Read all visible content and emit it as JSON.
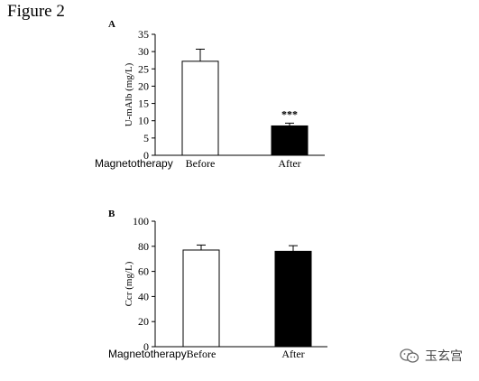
{
  "figure_title": "Figure 2",
  "watermark": {
    "text": "玉玄宫",
    "icon": "wechat-icon"
  },
  "chart_data": [
    {
      "panel": "A",
      "type": "bar",
      "row_label": "Magnetotherapy",
      "categories": [
        "Before",
        "After"
      ],
      "values": [
        27.2,
        8.5
      ],
      "errors": [
        3.5,
        0.8
      ],
      "annotations": [
        "",
        "***"
      ],
      "fills": [
        "#ffffff",
        "#000000"
      ],
      "ylabel": "U-mAlb  (mg/L)",
      "ylim": [
        0,
        35
      ],
      "yticks": [
        0,
        5,
        10,
        15,
        20,
        25,
        30,
        35
      ],
      "grid": false
    },
    {
      "panel": "B",
      "type": "bar",
      "row_label": "Magnetotherapy",
      "categories": [
        "Before",
        "After"
      ],
      "values": [
        77,
        76
      ],
      "errors": [
        4,
        4.5
      ],
      "annotations": [
        "",
        ""
      ],
      "fills": [
        "#ffffff",
        "#000000"
      ],
      "ylabel": "Ccr (mg/L)",
      "ylim": [
        0,
        100
      ],
      "yticks": [
        0,
        20,
        40,
        60,
        80,
        100
      ],
      "grid": false
    }
  ]
}
